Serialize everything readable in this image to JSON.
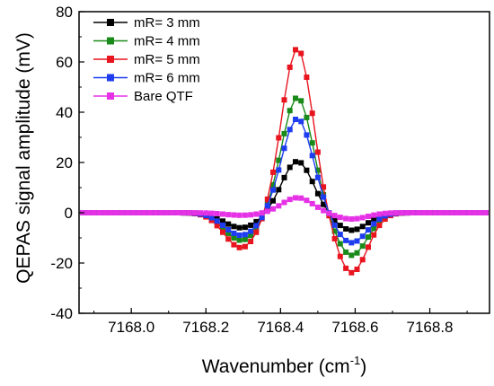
{
  "chart_data": {
    "type": "line",
    "xlabel_main": "Wavenumber (cm",
    "xlabel_sup": "-1",
    "xlabel_close": ")",
    "ylabel": "QEPAS signal amplitude (mV)",
    "xlim": [
      7167.86,
      7168.96
    ],
    "ylim": [
      -40,
      80
    ],
    "xticks": [
      7168.0,
      7168.2,
      7168.4,
      7168.6,
      7168.8
    ],
    "xtick_labels": [
      "7168.0",
      "7168.2",
      "7168.4",
      "7168.6",
      "7168.8"
    ],
    "yticks": [
      -40,
      -20,
      0,
      20,
      40,
      60,
      80
    ],
    "ytick_labels": [
      "-40",
      "-20",
      "0",
      "20",
      "40",
      "60",
      "80"
    ],
    "legend_position": "top-left",
    "line_shape": {
      "center": 7168.445,
      "x_start": 7167.87,
      "x_end": 7168.95,
      "step": 0.015
    },
    "series": [
      {
        "name": "mR= 3 mm",
        "color": "#000000",
        "peak": 20.5,
        "trough_left": -6,
        "trough_right": -7
      },
      {
        "name": "mR= 4 mm",
        "color": "#1a8a1a",
        "peak": 46,
        "trough_left": -11,
        "trough_right": -17
      },
      {
        "name": "mR= 5 mm",
        "color": "#e8141e",
        "peak": 65.5,
        "trough_left": -14,
        "trough_right": -24
      },
      {
        "name": "mR= 6 mm",
        "color": "#1e3cf0",
        "peak": 37.5,
        "trough_left": -9,
        "trough_right": -12
      },
      {
        "name": "Bare QTF",
        "color": "#e632e6",
        "peak": 6,
        "trough_left": -1,
        "trough_right": -2.5
      }
    ]
  }
}
